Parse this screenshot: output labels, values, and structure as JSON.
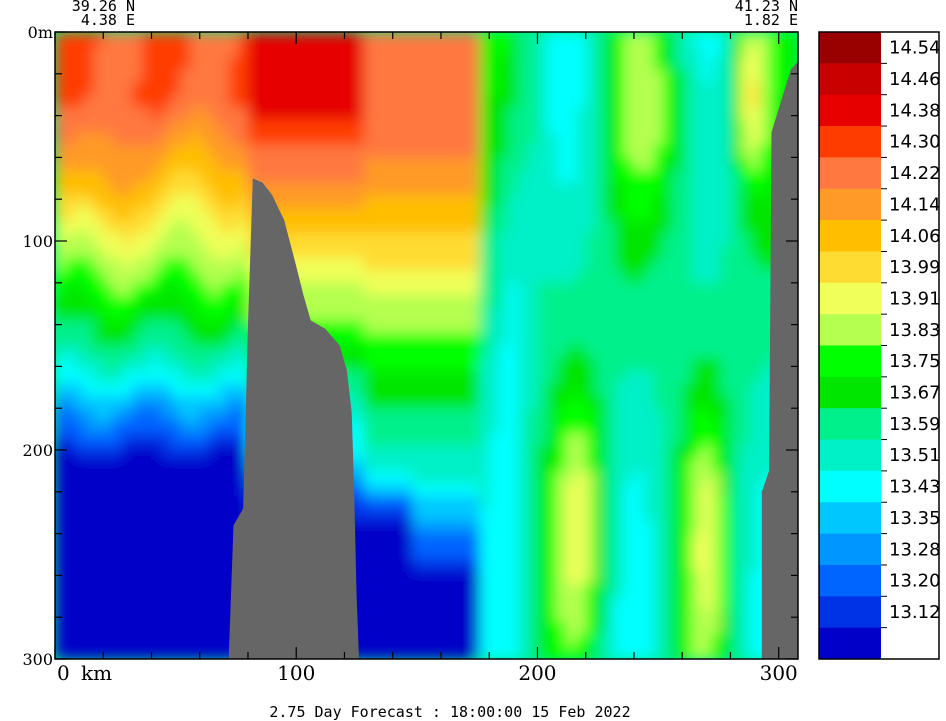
{
  "chart_data": {
    "type": "heatmap",
    "title": "",
    "xlabel": "",
    "ylabel": "",
    "x_unit_label": "km",
    "xlim": [
      0,
      308
    ],
    "ylim": [
      300,
      0
    ],
    "x_ticks": [
      0,
      100,
      200,
      300
    ],
    "x_tick_labels": [
      "0",
      "100",
      "200",
      "300"
    ],
    "y_ticks": [
      0,
      100,
      200,
      300
    ],
    "y_tick_labels": [
      "0m",
      "100",
      "200",
      "300"
    ],
    "start_coords": {
      "lat": "39.26 N",
      "lon": "4.38 E"
    },
    "end_coords": {
      "lat": "41.23 N",
      "lon": "1.82 E"
    },
    "caption": "2.75 Day Forecast : 18:00:00  15 Feb 2022",
    "land_color": "#666666",
    "colorbar": {
      "labels": [
        "14.54",
        "14.46",
        "14.38",
        "14.30",
        "14.22",
        "14.14",
        "14.06",
        "13.99",
        "13.91",
        "13.83",
        "13.75",
        "13.67",
        "13.59",
        "13.51",
        "13.43",
        "13.35",
        "13.28",
        "13.20",
        "13.12"
      ],
      "colors": [
        "#990000",
        "#c80000",
        "#e60000",
        "#ff3c00",
        "#ff7840",
        "#ff9a28",
        "#ffbe00",
        "#ffdc32",
        "#f0ff5a",
        "#b4ff50",
        "#00ff00",
        "#00e600",
        "#00f08c",
        "#00f0c8",
        "#00ffff",
        "#00c8ff",
        "#0096ff",
        "#0064ff",
        "#0032e6",
        "#0000c8"
      ]
    },
    "land_profile": [
      {
        "km": 72,
        "depth": 300
      },
      {
        "km": 74,
        "depth": 236
      },
      {
        "km": 78,
        "depth": 228
      },
      {
        "km": 80,
        "depth": 140
      },
      {
        "km": 82,
        "depth": 70
      },
      {
        "km": 86,
        "depth": 72
      },
      {
        "km": 90,
        "depth": 78
      },
      {
        "km": 95,
        "depth": 90
      },
      {
        "km": 100,
        "depth": 112
      },
      {
        "km": 103,
        "depth": 126
      },
      {
        "km": 106,
        "depth": 138
      },
      {
        "km": 112,
        "depth": 142
      },
      {
        "km": 118,
        "depth": 150
      },
      {
        "km": 121,
        "depth": 162
      },
      {
        "km": 123,
        "depth": 182
      },
      {
        "km": 124,
        "depth": 218
      },
      {
        "km": 125,
        "depth": 268
      },
      {
        "km": 126,
        "depth": 300
      }
    ],
    "land_profile_east": [
      {
        "km": 293,
        "depth": 300
      },
      {
        "km": 293,
        "depth": 220
      },
      {
        "km": 296,
        "depth": 210
      },
      {
        "km": 297,
        "depth": 48
      },
      {
        "km": 305,
        "depth": 18
      },
      {
        "km": 308,
        "depth": 14
      },
      {
        "km": 308,
        "depth": 300
      }
    ]
  }
}
